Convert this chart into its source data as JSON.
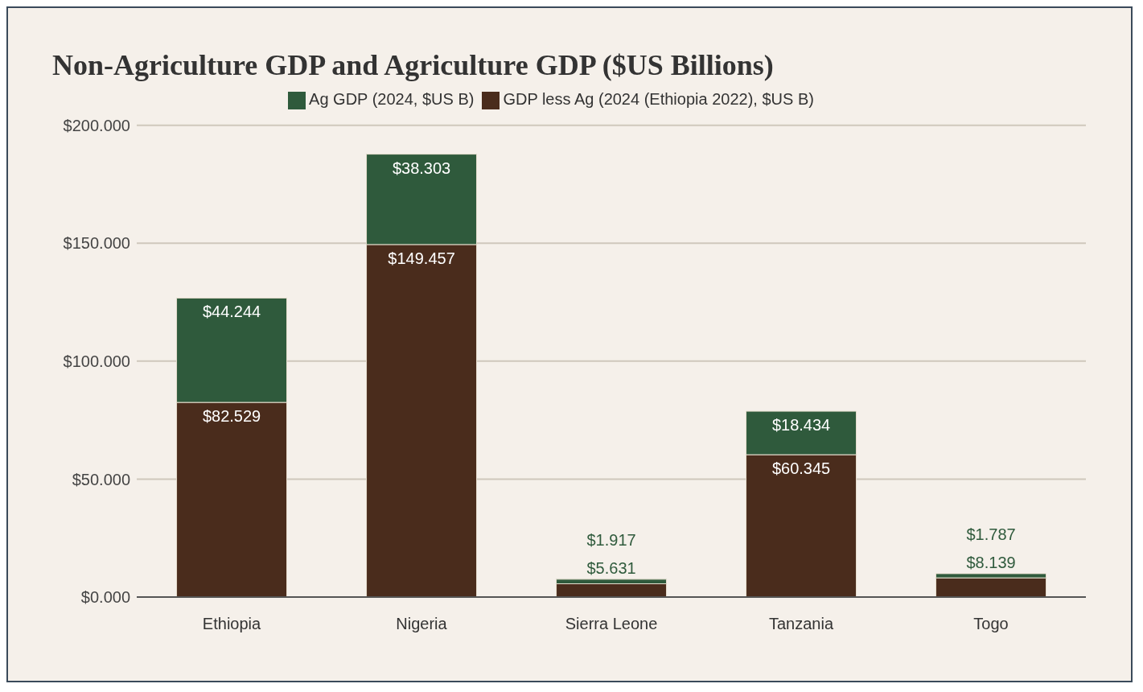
{
  "chart_data": {
    "type": "bar",
    "title": "Non-Agriculture GDP and Agriculture GDP ($US Billions)",
    "categories": [
      "Ethiopia",
      "Nigeria",
      "Sierra Leone",
      "Tanzania",
      "Togo"
    ],
    "stacked": true,
    "series": [
      {
        "name": "GDP less Ag (2024 (Ethiopia 2022), $US B)",
        "color": "#4a2c1c",
        "values": [
          82.529,
          149.457,
          5.631,
          60.345,
          8.139
        ],
        "value_labels": [
          "$82.529",
          "$149.457",
          "$5.631",
          "$60.345",
          "$8.139"
        ]
      },
      {
        "name": "Ag GDP (2024, $US B)",
        "color": "#2f5a3c",
        "values": [
          44.244,
          38.303,
          1.917,
          18.434,
          1.787
        ],
        "value_labels": [
          "$44.244",
          "$38.303",
          "$1.917",
          "$18.434",
          "$1.787"
        ]
      }
    ],
    "ylim": [
      0,
      200
    ],
    "yticks": [
      {
        "value": 0,
        "label": "$0.000"
      },
      {
        "value": 50,
        "label": "$50.000"
      },
      {
        "value": 100,
        "label": "$100.000"
      },
      {
        "value": 150,
        "label": "$150.000"
      },
      {
        "value": 200,
        "label": "$200.000"
      }
    ],
    "grid": "y",
    "legend": "top"
  }
}
